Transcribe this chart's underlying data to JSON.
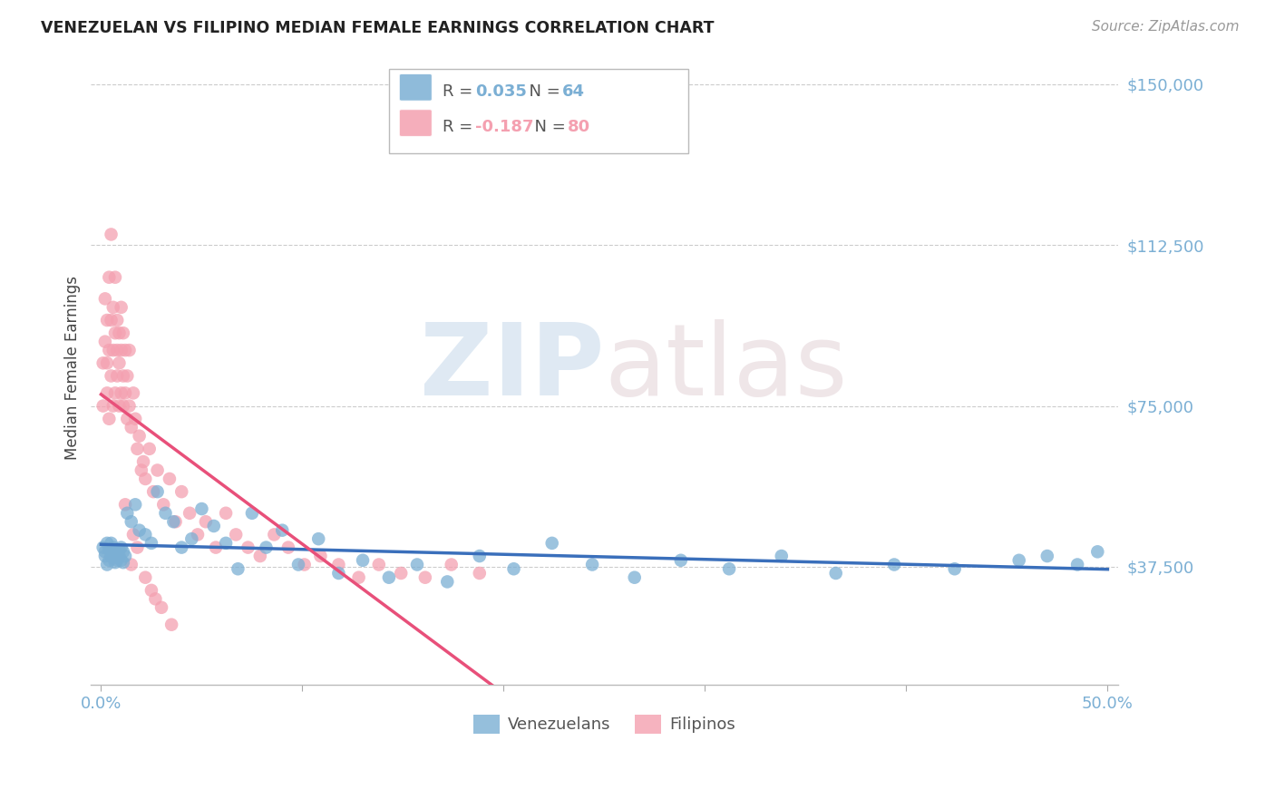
{
  "title": "VENEZUELAN VS FILIPINO MEDIAN FEMALE EARNINGS CORRELATION CHART",
  "source": "Source: ZipAtlas.com",
  "ylabel": "Median Female Earnings",
  "ytick_labels": [
    "$37,500",
    "$75,000",
    "$112,500",
    "$150,000"
  ],
  "ytick_values": [
    37500,
    75000,
    112500,
    150000
  ],
  "ymin": 10000,
  "ymax": 158000,
  "xmin": 0.0,
  "xmax": 0.5,
  "r_ven": "0.035",
  "n_ven": "64",
  "r_fil": "-0.187",
  "n_fil": "80",
  "venezuelan_color": "#7bafd4",
  "filipino_color": "#f4a0b0",
  "trend_venezuelan_color": "#3a6fbb",
  "trend_filipino_solid_color": "#e8507a",
  "trend_filipino_dashed_color": "#f4a0b0",
  "background_color": "#ffffff",
  "venezuelan_x": [
    0.001,
    0.002,
    0.002,
    0.003,
    0.003,
    0.004,
    0.004,
    0.005,
    0.005,
    0.006,
    0.006,
    0.006,
    0.007,
    0.007,
    0.007,
    0.008,
    0.008,
    0.009,
    0.009,
    0.01,
    0.01,
    0.011,
    0.011,
    0.012,
    0.013,
    0.015,
    0.017,
    0.019,
    0.022,
    0.025,
    0.028,
    0.032,
    0.036,
    0.04,
    0.045,
    0.05,
    0.056,
    0.062,
    0.068,
    0.075,
    0.082,
    0.09,
    0.098,
    0.108,
    0.118,
    0.13,
    0.143,
    0.157,
    0.172,
    0.188,
    0.205,
    0.224,
    0.244,
    0.265,
    0.288,
    0.312,
    0.338,
    0.365,
    0.394,
    0.424,
    0.456,
    0.47,
    0.485,
    0.495
  ],
  "venezuelan_y": [
    42000,
    41000,
    40000,
    43000,
    38000,
    41500,
    39000,
    40000,
    43000,
    41000,
    39500,
    42000,
    40000,
    38500,
    41000,
    40500,
    39000,
    41500,
    40000,
    42000,
    39000,
    41000,
    38500,
    40000,
    50000,
    48000,
    52000,
    46000,
    45000,
    43000,
    55000,
    50000,
    48000,
    42000,
    44000,
    51000,
    47000,
    43000,
    37000,
    50000,
    42000,
    46000,
    38000,
    44000,
    36000,
    39000,
    35000,
    38000,
    34000,
    40000,
    37000,
    43000,
    38000,
    35000,
    39000,
    37000,
    40000,
    36000,
    38000,
    37000,
    39000,
    40000,
    38000,
    41000
  ],
  "filipino_x": [
    0.001,
    0.001,
    0.002,
    0.002,
    0.003,
    0.003,
    0.003,
    0.004,
    0.004,
    0.004,
    0.005,
    0.005,
    0.005,
    0.006,
    0.006,
    0.006,
    0.007,
    0.007,
    0.007,
    0.008,
    0.008,
    0.008,
    0.009,
    0.009,
    0.009,
    0.01,
    0.01,
    0.01,
    0.011,
    0.011,
    0.011,
    0.012,
    0.012,
    0.013,
    0.013,
    0.014,
    0.014,
    0.015,
    0.016,
    0.017,
    0.018,
    0.019,
    0.021,
    0.022,
    0.024,
    0.026,
    0.028,
    0.031,
    0.034,
    0.037,
    0.04,
    0.044,
    0.048,
    0.052,
    0.057,
    0.062,
    0.067,
    0.073,
    0.079,
    0.086,
    0.093,
    0.101,
    0.109,
    0.118,
    0.128,
    0.138,
    0.149,
    0.161,
    0.174,
    0.188,
    0.02,
    0.025,
    0.03,
    0.015,
    0.035,
    0.018,
    0.022,
    0.027,
    0.012,
    0.016
  ],
  "filipino_y": [
    75000,
    85000,
    90000,
    100000,
    85000,
    95000,
    78000,
    88000,
    105000,
    72000,
    95000,
    82000,
    115000,
    88000,
    98000,
    75000,
    92000,
    105000,
    78000,
    88000,
    95000,
    82000,
    75000,
    92000,
    85000,
    78000,
    98000,
    88000,
    82000,
    75000,
    92000,
    88000,
    78000,
    72000,
    82000,
    88000,
    75000,
    70000,
    78000,
    72000,
    65000,
    68000,
    62000,
    58000,
    65000,
    55000,
    60000,
    52000,
    58000,
    48000,
    55000,
    50000,
    45000,
    48000,
    42000,
    50000,
    45000,
    42000,
    40000,
    45000,
    42000,
    38000,
    40000,
    38000,
    35000,
    38000,
    36000,
    35000,
    38000,
    36000,
    60000,
    32000,
    28000,
    38000,
    24000,
    42000,
    35000,
    30000,
    52000,
    45000
  ]
}
